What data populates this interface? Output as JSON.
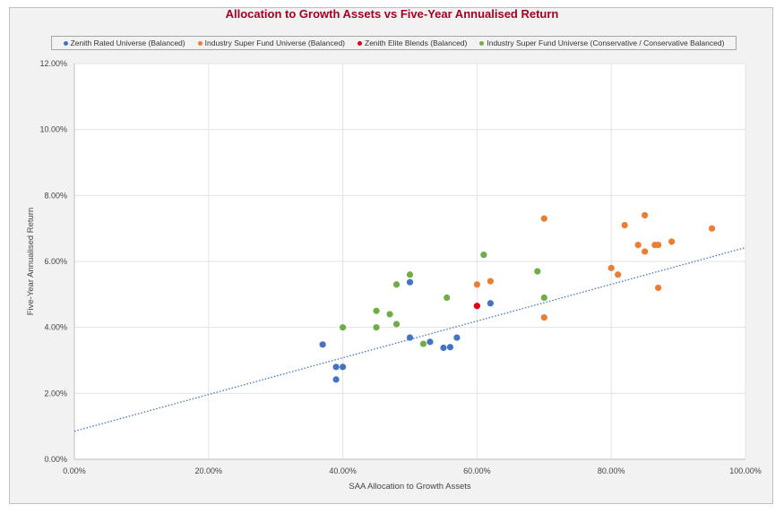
{
  "chart_data": {
    "type": "scatter",
    "title": "Allocation to Growth Assets vs Five-Year Annualised Return",
    "xlabel": "SAA Allocation to Growth Assets",
    "ylabel": "Five-Year Annualised Return",
    "xlim": [
      0,
      1.0
    ],
    "ylim": [
      0,
      0.12
    ],
    "x_ticks": [
      "0.00%",
      "20.00%",
      "40.00%",
      "60.00%",
      "80.00%",
      "100.00%"
    ],
    "y_ticks": [
      "0.00%",
      "2.00%",
      "4.00%",
      "6.00%",
      "8.00%",
      "10.00%",
      "12.00%"
    ],
    "grid": true,
    "legend_position": "top",
    "trendline": {
      "type": "linear",
      "style": "dotted",
      "color": "#4472c4",
      "start": [
        0,
        0.0085
      ],
      "end": [
        1.0,
        0.0642
      ]
    },
    "series": [
      {
        "name": "Zenith Rated Universe (Balanced)",
        "color": "#4472c4",
        "points": [
          [
            0.37,
            0.0348
          ],
          [
            0.39,
            0.028
          ],
          [
            0.4,
            0.028
          ],
          [
            0.39,
            0.0242
          ],
          [
            0.5,
            0.0537
          ],
          [
            0.5,
            0.0369
          ],
          [
            0.53,
            0.0356
          ],
          [
            0.55,
            0.0338
          ],
          [
            0.56,
            0.034
          ],
          [
            0.57,
            0.0369
          ],
          [
            0.62,
            0.0473
          ]
        ]
      },
      {
        "name": "Industry Super Fund Universe (Balanced)",
        "color": "#ed7d31",
        "points": [
          [
            0.6,
            0.053
          ],
          [
            0.62,
            0.054
          ],
          [
            0.7,
            0.073
          ],
          [
            0.7,
            0.043
          ],
          [
            0.8,
            0.058
          ],
          [
            0.81,
            0.056
          ],
          [
            0.82,
            0.071
          ],
          [
            0.84,
            0.065
          ],
          [
            0.85,
            0.074
          ],
          [
            0.85,
            0.063
          ],
          [
            0.865,
            0.065
          ],
          [
            0.87,
            0.065
          ],
          [
            0.87,
            0.052
          ],
          [
            0.89,
            0.066
          ],
          [
            0.95,
            0.07
          ]
        ]
      },
      {
        "name": "Zenith Elite Blends (Balanced)",
        "color": "#e8000b",
        "points": [
          [
            0.6,
            0.0465
          ]
        ]
      },
      {
        "name": "Industry Super Fund Universe (Conservative / Conservative Balanced)",
        "color": "#70ad47",
        "points": [
          [
            0.4,
            0.04
          ],
          [
            0.45,
            0.045
          ],
          [
            0.45,
            0.04
          ],
          [
            0.47,
            0.044
          ],
          [
            0.48,
            0.053
          ],
          [
            0.48,
            0.041
          ],
          [
            0.5,
            0.056
          ],
          [
            0.52,
            0.035
          ],
          [
            0.555,
            0.049
          ],
          [
            0.61,
            0.062
          ],
          [
            0.69,
            0.057
          ],
          [
            0.7,
            0.049
          ]
        ]
      }
    ]
  }
}
